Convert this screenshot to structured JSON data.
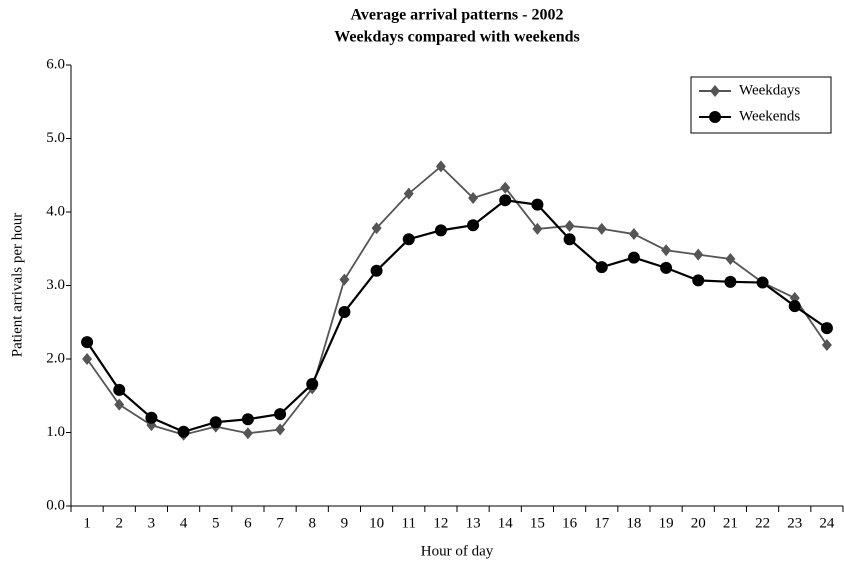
{
  "chart_data": {
    "type": "line",
    "title": "Average arrival patterns - 2002",
    "subtitle": "Weekdays compared with weekends",
    "x_label": "Hour of day",
    "y_label": "Patient arrivals per hour",
    "categories": [
      "1",
      "2",
      "3",
      "4",
      "5",
      "6",
      "7",
      "8",
      "9",
      "10",
      "11",
      "12",
      "13",
      "14",
      "15",
      "16",
      "17",
      "18",
      "19",
      "20",
      "21",
      "22",
      "23",
      "24"
    ],
    "series": [
      {
        "name": "Weekdays",
        "color": "#555555",
        "marker": "diamond",
        "values": [
          2.0,
          1.38,
          1.1,
          0.97,
          1.08,
          0.99,
          1.04,
          1.6,
          3.08,
          3.78,
          4.25,
          4.62,
          4.19,
          4.33,
          3.77,
          3.81,
          3.77,
          3.7,
          3.48,
          3.42,
          3.36,
          3.04,
          2.83,
          2.19
        ]
      },
      {
        "name": "Weekends",
        "color": "#000000",
        "marker": "circle",
        "values": [
          2.23,
          1.58,
          1.2,
          1.01,
          1.14,
          1.18,
          1.25,
          1.66,
          2.64,
          3.2,
          3.63,
          3.75,
          3.82,
          4.16,
          4.1,
          3.63,
          3.25,
          3.38,
          3.24,
          3.07,
          3.05,
          3.04,
          2.72,
          2.42
        ]
      }
    ],
    "ylim": [
      0,
      6
    ],
    "yticks": [
      {
        "value": 0,
        "label": "0.0"
      },
      {
        "value": 1,
        "label": "1.0"
      },
      {
        "value": 2,
        "label": "2.0"
      },
      {
        "value": 3,
        "label": "3.0"
      },
      {
        "value": 4,
        "label": "4.0"
      },
      {
        "value": 5,
        "label": "5.0"
      },
      {
        "value": 6,
        "label": "6.0"
      }
    ],
    "grid": false,
    "legend": "top-right"
  }
}
